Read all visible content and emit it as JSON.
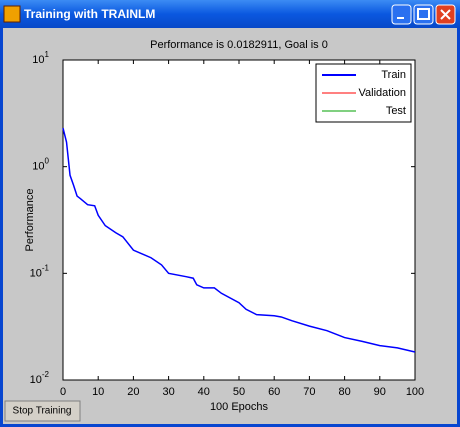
{
  "window": {
    "title": "Training with TRAINLM",
    "button": "Stop Training"
  },
  "chart_data": {
    "type": "line",
    "title": "Performance is 0.0182911, Goal is 0",
    "xlabel": "100 Epochs",
    "ylabel": "Performance",
    "x": [
      0,
      1,
      2,
      3,
      4,
      5,
      7,
      9,
      10,
      12,
      15,
      17,
      20,
      25,
      28,
      30,
      35,
      37,
      38,
      40,
      43,
      45,
      50,
      52,
      55,
      60,
      62,
      65,
      70,
      75,
      80,
      85,
      90,
      95,
      100
    ],
    "series": [
      {
        "name": "Train",
        "color": "#0000ff",
        "values": [
          2.3,
          1.7,
          0.83,
          0.67,
          0.53,
          0.5,
          0.44,
          0.43,
          0.35,
          0.28,
          0.24,
          0.22,
          0.165,
          0.14,
          0.12,
          0.1,
          0.093,
          0.09,
          0.078,
          0.073,
          0.073,
          0.065,
          0.053,
          0.046,
          0.041,
          0.04,
          0.039,
          0.036,
          0.032,
          0.029,
          0.025,
          0.023,
          0.021,
          0.02,
          0.0183
        ]
      }
    ],
    "legend": [
      {
        "name": "Validation",
        "color": "#ff0000"
      },
      {
        "name": "Test",
        "color": "#00a000"
      }
    ],
    "legend_position": "upper right",
    "xlim": [
      0,
      100
    ],
    "xticks": [
      0,
      10,
      20,
      30,
      40,
      50,
      60,
      70,
      80,
      90,
      100
    ],
    "ylim": [
      0.01,
      10
    ],
    "yscale": "log",
    "yticks": [
      {
        "value": 0.01,
        "label": "10",
        "exponent": "-2"
      },
      {
        "value": 0.1,
        "label": "10",
        "exponent": "-1"
      },
      {
        "value": 1,
        "label": "10",
        "exponent": "0"
      },
      {
        "value": 10,
        "label": "10",
        "exponent": "1"
      }
    ]
  }
}
